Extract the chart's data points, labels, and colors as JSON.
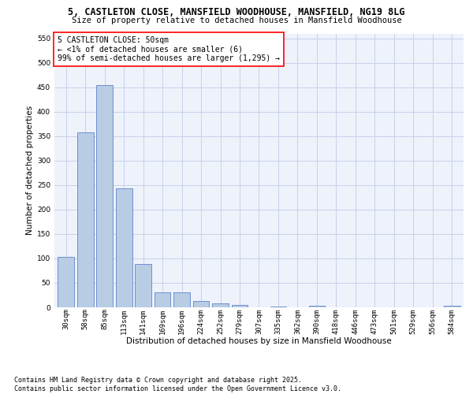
{
  "title_line1": "5, CASTLETON CLOSE, MANSFIELD WOODHOUSE, MANSFIELD, NG19 8LG",
  "title_line2": "Size of property relative to detached houses in Mansfield Woodhouse",
  "xlabel": "Distribution of detached houses by size in Mansfield Woodhouse",
  "ylabel": "Number of detached properties",
  "categories": [
    "30sqm",
    "58sqm",
    "85sqm",
    "113sqm",
    "141sqm",
    "169sqm",
    "196sqm",
    "224sqm",
    "252sqm",
    "279sqm",
    "307sqm",
    "335sqm",
    "362sqm",
    "390sqm",
    "418sqm",
    "446sqm",
    "473sqm",
    "501sqm",
    "529sqm",
    "556sqm",
    "584sqm"
  ],
  "values": [
    103,
    357,
    455,
    243,
    88,
    30,
    30,
    13,
    8,
    5,
    0,
    2,
    0,
    3,
    0,
    0,
    0,
    0,
    0,
    0,
    3
  ],
  "bar_color": "#b8cce4",
  "bar_edge_color": "#4472c4",
  "annotation_text": "5 CASTLETON CLOSE: 50sqm\n← <1% of detached houses are smaller (6)\n99% of semi-detached houses are larger (1,295) →",
  "annotation_box_color": "#ffffff",
  "annotation_box_edge_color": "#ff0000",
  "ylim": [
    0,
    560
  ],
  "yticks": [
    0,
    50,
    100,
    150,
    200,
    250,
    300,
    350,
    400,
    450,
    500,
    550
  ],
  "footer_text": "Contains HM Land Registry data © Crown copyright and database right 2025.\nContains public sector information licensed under the Open Government Licence v3.0.",
  "bg_color": "#eef2fb",
  "grid_color": "#c8d0e8",
  "title_fontsize": 8.5,
  "subtitle_fontsize": 7.5,
  "axis_label_fontsize": 7.5,
  "tick_fontsize": 6.5,
  "annotation_fontsize": 7,
  "footer_fontsize": 6
}
